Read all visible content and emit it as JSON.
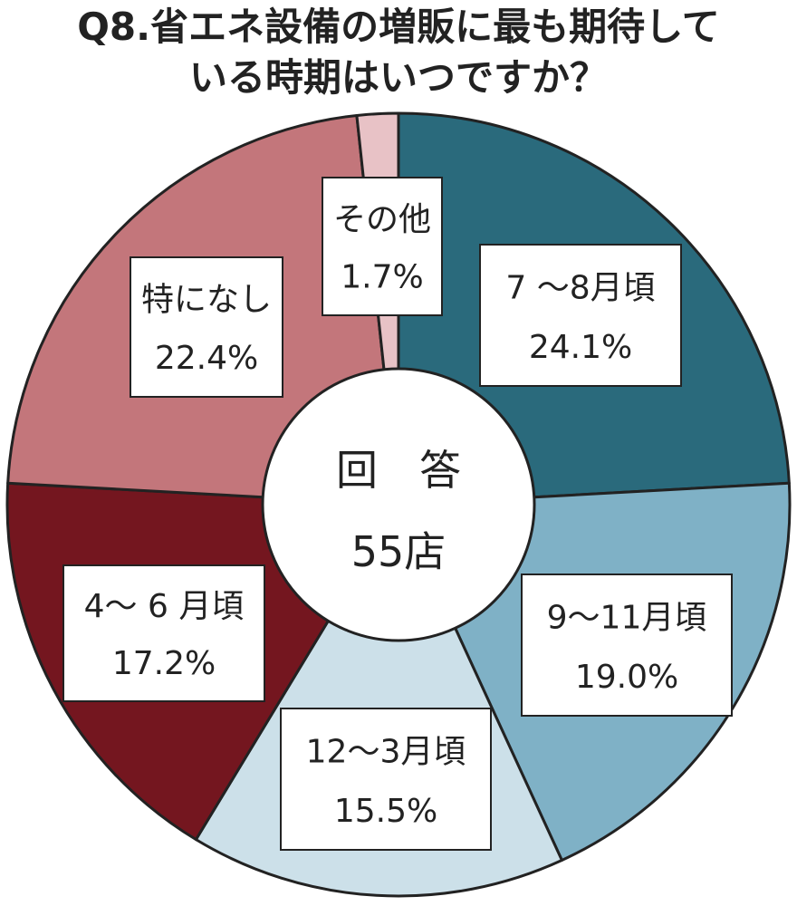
{
  "title": {
    "line1": "Q8.省エネ設備の増販に最も期待して",
    "line2": "いる時期はいつですか？"
  },
  "center": {
    "line1": "回　答",
    "line2": "55店"
  },
  "chart_data": {
    "type": "pie",
    "donut": true,
    "title": "Q8.省エネ設備の増販に最も期待している時期はいつですか？",
    "categories": [
      "7～8月頃",
      "9～11月頃",
      "12～3月頃",
      "4～6月頃",
      "特になし",
      "その他"
    ],
    "values": [
      24.1,
      19.0,
      15.5,
      17.2,
      22.4,
      1.7
    ],
    "value_labels": [
      "24.1%",
      "19.0%",
      "15.5%",
      "17.2%",
      "22.4%",
      "1.7%"
    ],
    "display_labels": [
      "7 ～8月頃",
      "9～11月頃",
      "12～3月頃",
      "4～ 6 月頃",
      "特になし",
      "その他"
    ],
    "colors": [
      "#2a6a7c",
      "#7fb1c6",
      "#cce0e9",
      "#74161f",
      "#c3767b",
      "#e8c2c6"
    ],
    "start": "12 o'clock",
    "direction": "clockwise"
  }
}
